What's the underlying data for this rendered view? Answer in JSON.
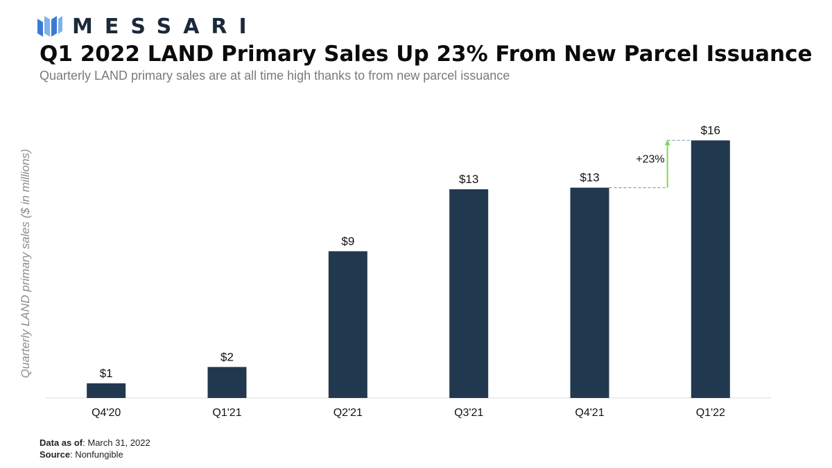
{
  "brand": {
    "name": "MESSARI",
    "color": "#1b2a3a",
    "mark_colors": [
      "#3b7bd4",
      "#7fb2ea"
    ]
  },
  "header": {
    "title": "Q1 2022 LAND Primary Sales Up 23% From New Parcel Issuance",
    "subtitle": "Quarterly LAND primary sales are at all time high thanks to from new parcel issuance"
  },
  "chart_data": {
    "type": "bar",
    "categories": [
      "Q4'20",
      "Q1'21",
      "Q2'21",
      "Q3'21",
      "Q4'21",
      "Q1'22"
    ],
    "values": [
      0.9,
      1.9,
      9.0,
      12.8,
      12.9,
      15.8
    ],
    "data_labels": [
      "$1",
      "$2",
      "$9",
      "$13",
      "$13",
      "$16"
    ],
    "ylabel": "Quarterly LAND primary sales ($ in millions)",
    "xlabel": "",
    "ylim": [
      0,
      16.5
    ],
    "grid": false,
    "bar_color": "#22384f",
    "annotation": {
      "text": "+23%",
      "from_category": "Q4'21",
      "to_category": "Q1'22",
      "arrow_color": "#7ed957",
      "guide_color": "#8aa0b5"
    }
  },
  "footer": {
    "data_as_of_label": "Data as of",
    "data_as_of_value": ": March 31, 2022",
    "source_label": "Source",
    "source_value": ": Nonfungible"
  }
}
